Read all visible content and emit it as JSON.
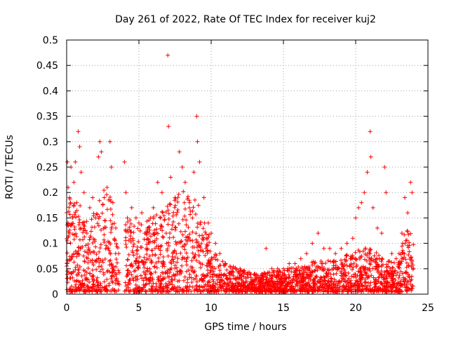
{
  "chart_data": {
    "type": "scatter",
    "title": "Day 261 of 2022, Rate Of TEC Index for receiver kuj2",
    "xlabel": "GPS time / hours",
    "ylabel": "ROTI / TECUs",
    "xlim": [
      0,
      25
    ],
    "ylim": [
      0,
      0.5
    ],
    "grid": true,
    "x_ticks": [
      0,
      5,
      10,
      15,
      20,
      25
    ],
    "x_tick_labels": [
      "0",
      "5",
      "10",
      "15",
      "20",
      "25"
    ],
    "y_ticks": [
      0,
      0.05,
      0.1,
      0.15,
      0.2,
      0.25,
      0.3,
      0.35,
      0.4,
      0.45,
      0.5
    ],
    "y_tick_labels": [
      "0",
      "0.05",
      "0.1",
      "0.15",
      "0.2",
      "0.25",
      "0.3",
      "0.35",
      "0.4",
      "0.45",
      "0.5"
    ],
    "marker": "plus",
    "marker_color": "#ff0000",
    "series": [
      {
        "name": "ROTI",
        "points": [
          [
            0.05,
            0.26
          ],
          [
            0.1,
            0.21
          ],
          [
            0.2,
            0.19
          ],
          [
            0.3,
            0.25
          ],
          [
            0.4,
            0.15
          ],
          [
            0.5,
            0.22
          ],
          [
            0.6,
            0.26
          ],
          [
            0.7,
            0.18
          ],
          [
            0.8,
            0.32
          ],
          [
            0.9,
            0.29
          ],
          [
            1.0,
            0.24
          ],
          [
            1.1,
            0.14
          ],
          [
            1.2,
            0.2
          ],
          [
            1.4,
            0.12
          ],
          [
            1.6,
            0.17
          ],
          [
            1.8,
            0.19
          ],
          [
            2.0,
            0.15
          ],
          [
            2.2,
            0.27
          ],
          [
            2.3,
            0.3
          ],
          [
            2.4,
            0.28
          ],
          [
            2.6,
            0.19
          ],
          [
            2.8,
            0.21
          ],
          [
            3.0,
            0.3
          ],
          [
            3.1,
            0.25
          ],
          [
            3.2,
            0.18
          ],
          [
            3.4,
            0.13
          ],
          [
            3.6,
            0.08
          ],
          [
            4.0,
            0.26
          ],
          [
            4.1,
            0.2
          ],
          [
            4.2,
            0.15
          ],
          [
            4.5,
            0.17
          ],
          [
            4.8,
            0.15
          ],
          [
            5.0,
            0.14
          ],
          [
            5.2,
            0.16
          ],
          [
            5.4,
            0.12
          ],
          [
            5.6,
            0.13
          ],
          [
            5.8,
            0.15
          ],
          [
            6.0,
            0.17
          ],
          [
            6.3,
            0.22
          ],
          [
            6.6,
            0.2
          ],
          [
            7.0,
            0.47
          ],
          [
            7.05,
            0.33
          ],
          [
            7.2,
            0.23
          ],
          [
            7.5,
            0.19
          ],
          [
            7.8,
            0.28
          ],
          [
            8.0,
            0.25
          ],
          [
            8.2,
            0.22
          ],
          [
            8.5,
            0.18
          ],
          [
            8.8,
            0.24
          ],
          [
            9.0,
            0.35
          ],
          [
            9.05,
            0.3
          ],
          [
            9.2,
            0.26
          ],
          [
            9.5,
            0.19
          ],
          [
            9.8,
            0.14
          ],
          [
            10.0,
            0.12
          ],
          [
            10.3,
            0.1
          ],
          [
            10.6,
            0.08
          ],
          [
            11.0,
            0.06
          ],
          [
            11.5,
            0.05
          ],
          [
            12.0,
            0.05
          ],
          [
            12.5,
            0.04
          ],
          [
            13.0,
            0.04
          ],
          [
            13.5,
            0.04
          ],
          [
            13.8,
            0.09
          ],
          [
            14.2,
            0.05
          ],
          [
            14.6,
            0.05
          ],
          [
            15.0,
            0.05
          ],
          [
            15.4,
            0.06
          ],
          [
            15.8,
            0.06
          ],
          [
            16.2,
            0.07
          ],
          [
            16.6,
            0.08
          ],
          [
            17.0,
            0.1
          ],
          [
            17.4,
            0.12
          ],
          [
            17.8,
            0.09
          ],
          [
            18.2,
            0.09
          ],
          [
            18.6,
            0.08
          ],
          [
            19.0,
            0.09
          ],
          [
            19.4,
            0.1
          ],
          [
            19.8,
            0.11
          ],
          [
            20.0,
            0.15
          ],
          [
            20.2,
            0.17
          ],
          [
            20.4,
            0.18
          ],
          [
            20.6,
            0.2
          ],
          [
            20.8,
            0.24
          ],
          [
            21.0,
            0.32
          ],
          [
            21.05,
            0.27
          ],
          [
            21.2,
            0.17
          ],
          [
            21.5,
            0.13
          ],
          [
            21.8,
            0.12
          ],
          [
            22.0,
            0.25
          ],
          [
            22.1,
            0.2
          ],
          [
            22.5,
            0.08
          ],
          [
            22.8,
            0.07
          ],
          [
            23.0,
            0.08
          ],
          [
            23.2,
            0.12
          ],
          [
            23.4,
            0.19
          ],
          [
            23.6,
            0.16
          ],
          [
            23.8,
            0.22
          ],
          [
            23.9,
            0.2
          ]
        ]
      }
    ]
  }
}
